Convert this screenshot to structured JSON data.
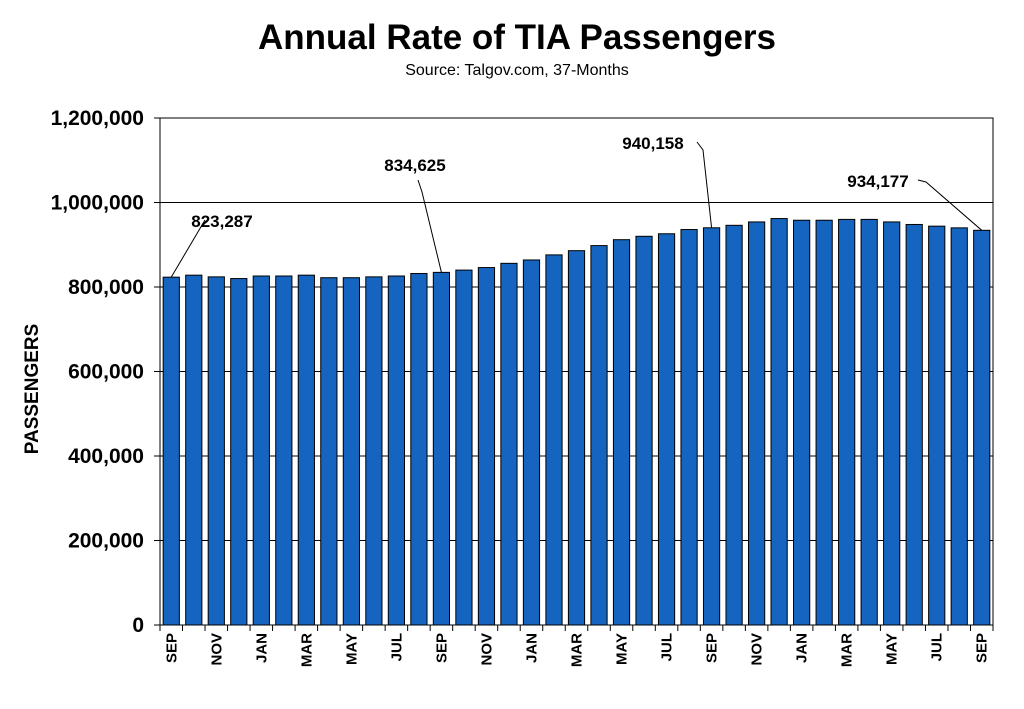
{
  "chart_data": {
    "type": "bar",
    "title": "Annual Rate of TIA Passengers",
    "subtitle": "Source: Talgov.com, 37-Months",
    "ylabel": "PASSENGERS",
    "xlabel": "",
    "ylim": [
      0,
      1200000
    ],
    "yticks": [
      0,
      200000,
      400000,
      600000,
      800000,
      1000000,
      1200000
    ],
    "ytick_labels": [
      "0",
      "200,000",
      "400,000",
      "600,000",
      "800,000",
      "1,000,000",
      "1,200,000"
    ],
    "grid": "horizontal",
    "bar_color": "#1565c0",
    "tick_labels": [
      {
        "index": 0,
        "label": "SEP"
      },
      {
        "index": 2,
        "label": "NOV"
      },
      {
        "index": 4,
        "label": "JAN"
      },
      {
        "index": 6,
        "label": "MAR"
      },
      {
        "index": 8,
        "label": "MAY"
      },
      {
        "index": 10,
        "label": "JUL"
      },
      {
        "index": 12,
        "label": "SEP"
      },
      {
        "index": 14,
        "label": "NOV"
      },
      {
        "index": 16,
        "label": "JAN"
      },
      {
        "index": 18,
        "label": "MAR"
      },
      {
        "index": 20,
        "label": "MAY"
      },
      {
        "index": 22,
        "label": "JUL"
      },
      {
        "index": 24,
        "label": "SEP"
      },
      {
        "index": 26,
        "label": "NOV"
      },
      {
        "index": 28,
        "label": "JAN"
      },
      {
        "index": 30,
        "label": "MAR"
      },
      {
        "index": 32,
        "label": "MAY"
      },
      {
        "index": 34,
        "label": "JUL"
      },
      {
        "index": 36,
        "label": "SEP"
      }
    ],
    "values": [
      823287,
      828000,
      824000,
      820000,
      826000,
      826000,
      828000,
      822000,
      822000,
      824000,
      826000,
      832000,
      834625,
      840000,
      846000,
      856000,
      864000,
      876000,
      886000,
      898000,
      912000,
      920000,
      926000,
      936000,
      940158,
      946000,
      954000,
      962000,
      958000,
      958000,
      960000,
      960000,
      954000,
      948000,
      944000,
      940000,
      934177
    ],
    "annotations": [
      {
        "index": 0,
        "text": "823,287"
      },
      {
        "index": 12,
        "text": "834,625"
      },
      {
        "index": 24,
        "text": "940,158"
      },
      {
        "index": 36,
        "text": "934,177"
      }
    ]
  }
}
